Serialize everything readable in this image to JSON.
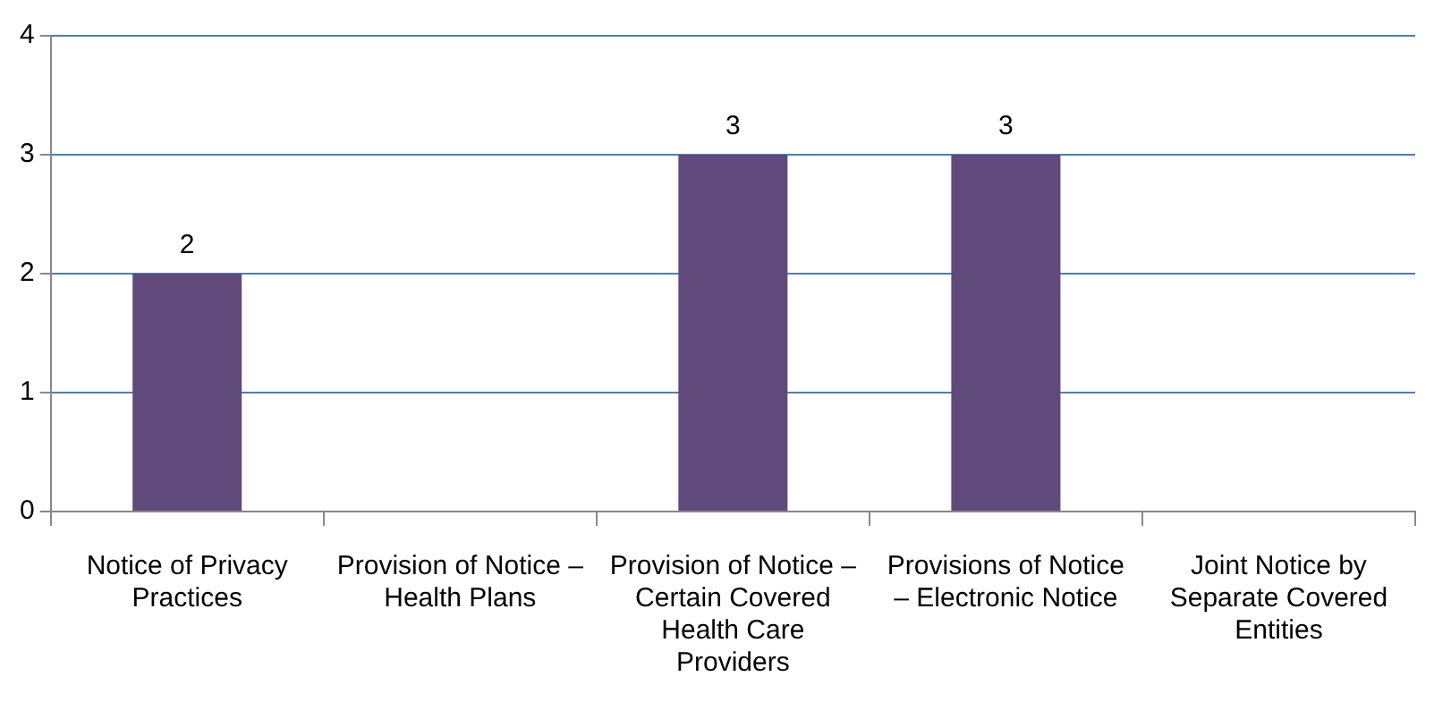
{
  "chart_data": {
    "type": "bar",
    "categories": [
      "Notice of Privacy Practices",
      "Provision of Notice – Health Plans",
      "Provision of Notice – Certain Covered Health Care Providers",
      "Provisions of Notice – Electronic Notice",
      "Joint Notice by Separate Covered Entities"
    ],
    "values": [
      2,
      0,
      3,
      3,
      0
    ],
    "value_labels": [
      "2",
      null,
      "3",
      "3",
      null
    ],
    "color": "#604a7b",
    "ylim": [
      0,
      4
    ],
    "yticks": [
      0,
      1,
      2,
      3,
      4
    ],
    "grid": "y",
    "legend": false
  }
}
